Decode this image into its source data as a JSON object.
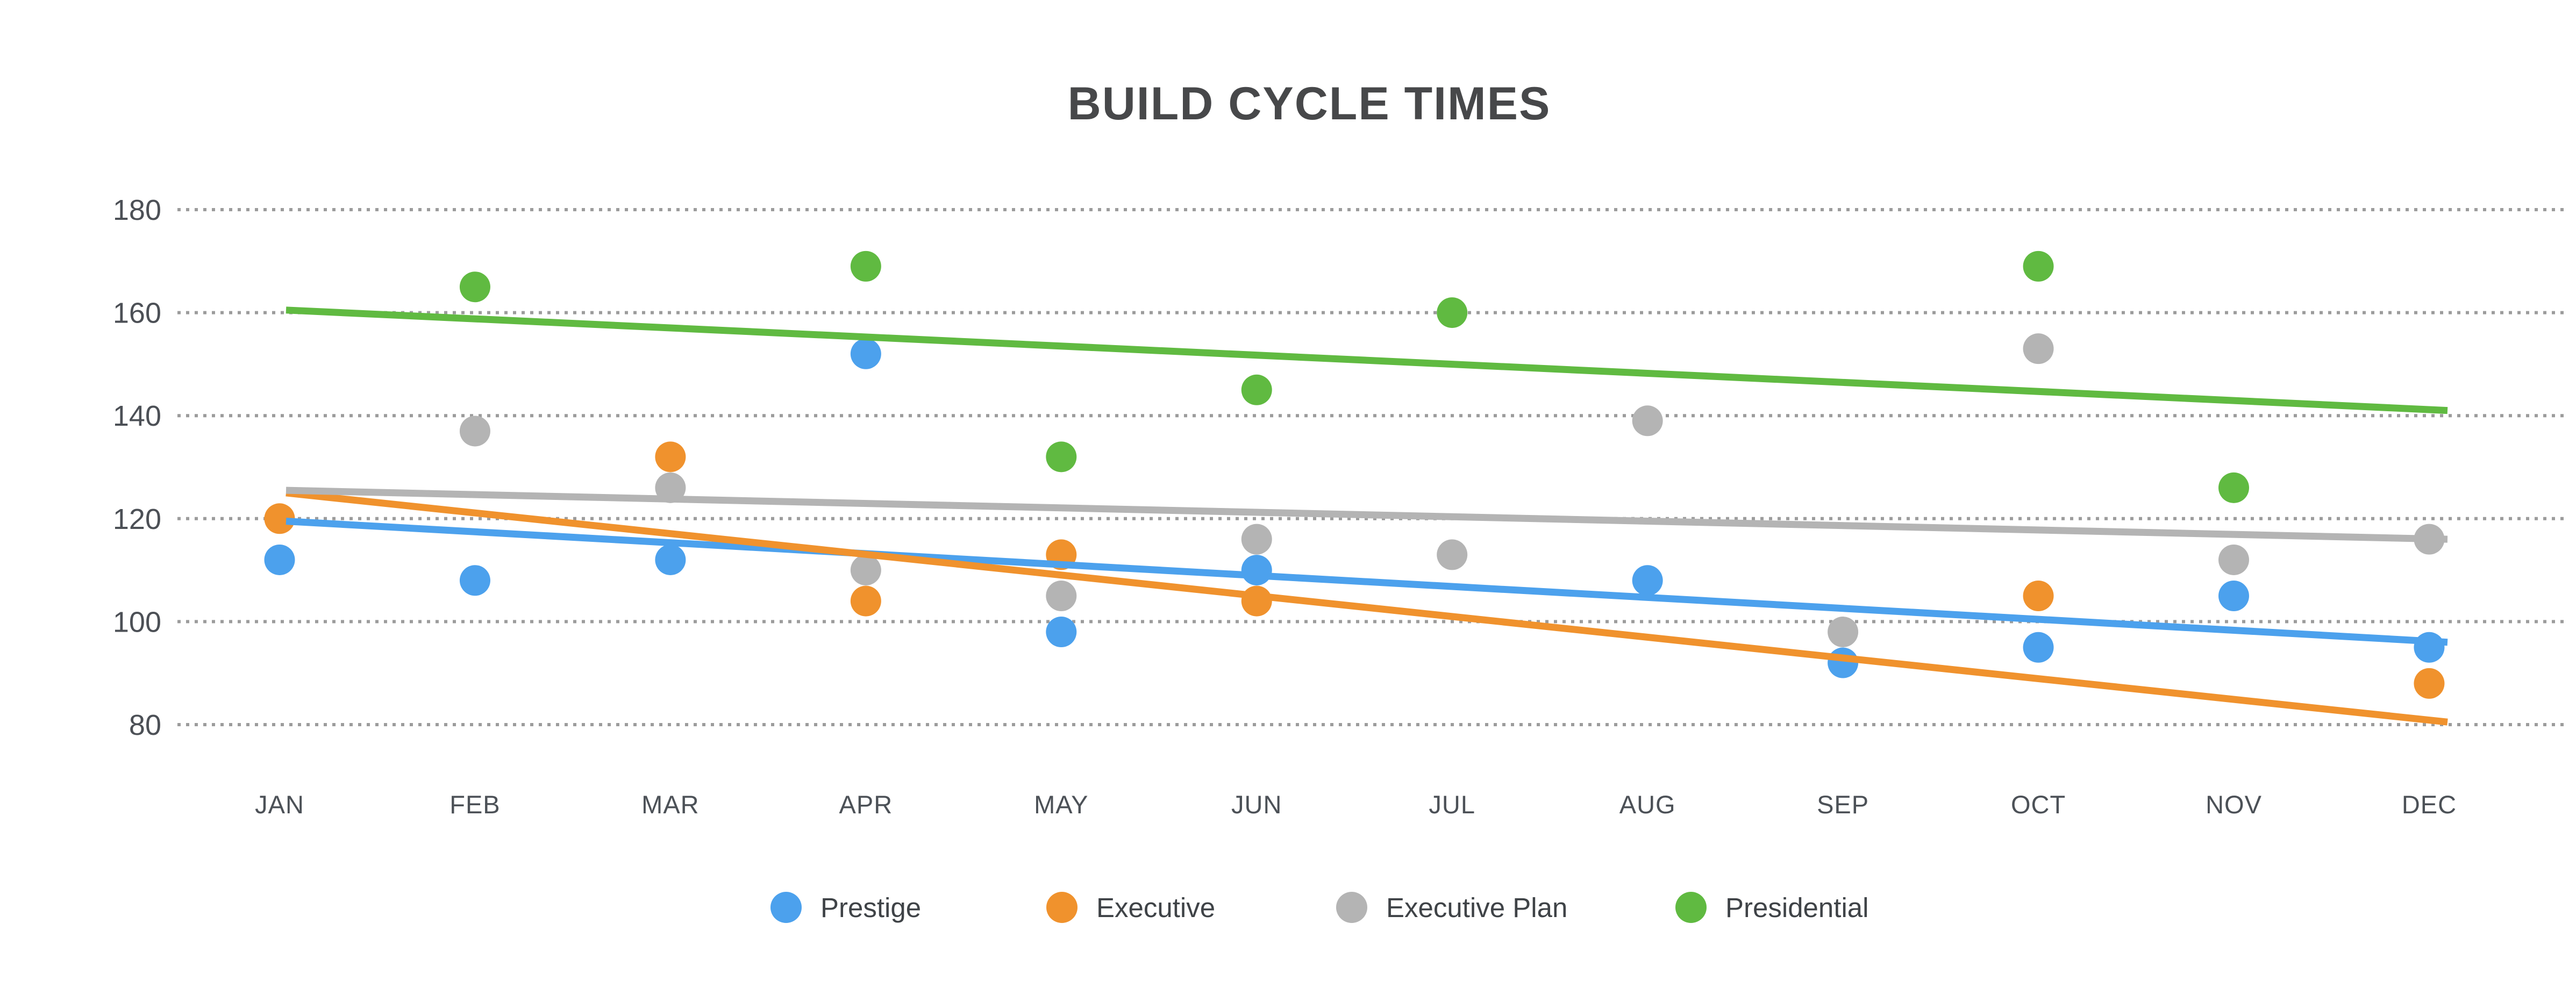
{
  "title": "BUILD  CYCLE TIMES",
  "chart_data": {
    "type": "scatter",
    "title": "BUILD  CYCLE TIMES",
    "categories": [
      "JAN",
      "FEB",
      "MAR",
      "APR",
      "MAY",
      "JUN",
      "JUL",
      "AUG",
      "SEP",
      "OCT",
      "NOV",
      "DEC"
    ],
    "xlabel": "",
    "ylabel": "",
    "ylim": [
      80,
      180
    ],
    "y_ticks": [
      180,
      160,
      140,
      120,
      100,
      80
    ],
    "grid": "horizontal-dotted",
    "legend_position": "bottom",
    "series": [
      {
        "name": "Prestige",
        "color": "#4CA1ED",
        "values": [
          112,
          108,
          112,
          152,
          98,
          110,
          null,
          108,
          92,
          95,
          105,
          95
        ],
        "trendline": {
          "start": 119.5,
          "end": 96
        }
      },
      {
        "name": "Executive",
        "color": "#F0922D",
        "values": [
          120,
          null,
          132,
          104,
          113,
          104,
          null,
          null,
          null,
          105,
          null,
          88
        ],
        "trendline": {
          "start": 125,
          "end": 80.5
        }
      },
      {
        "name": "Executive Plan",
        "color": "#B4B4B4",
        "values": [
          null,
          137,
          126,
          110,
          105,
          116,
          113,
          139,
          98,
          153,
          112,
          116
        ],
        "trendline": {
          "start": 125.5,
          "end": 116
        }
      },
      {
        "name": "Presidential",
        "color": "#60BA41",
        "values": [
          null,
          165,
          null,
          169,
          132,
          145,
          160,
          null,
          null,
          169,
          126,
          null
        ],
        "trendline": {
          "start": 160.5,
          "end": 141
        }
      }
    ]
  }
}
